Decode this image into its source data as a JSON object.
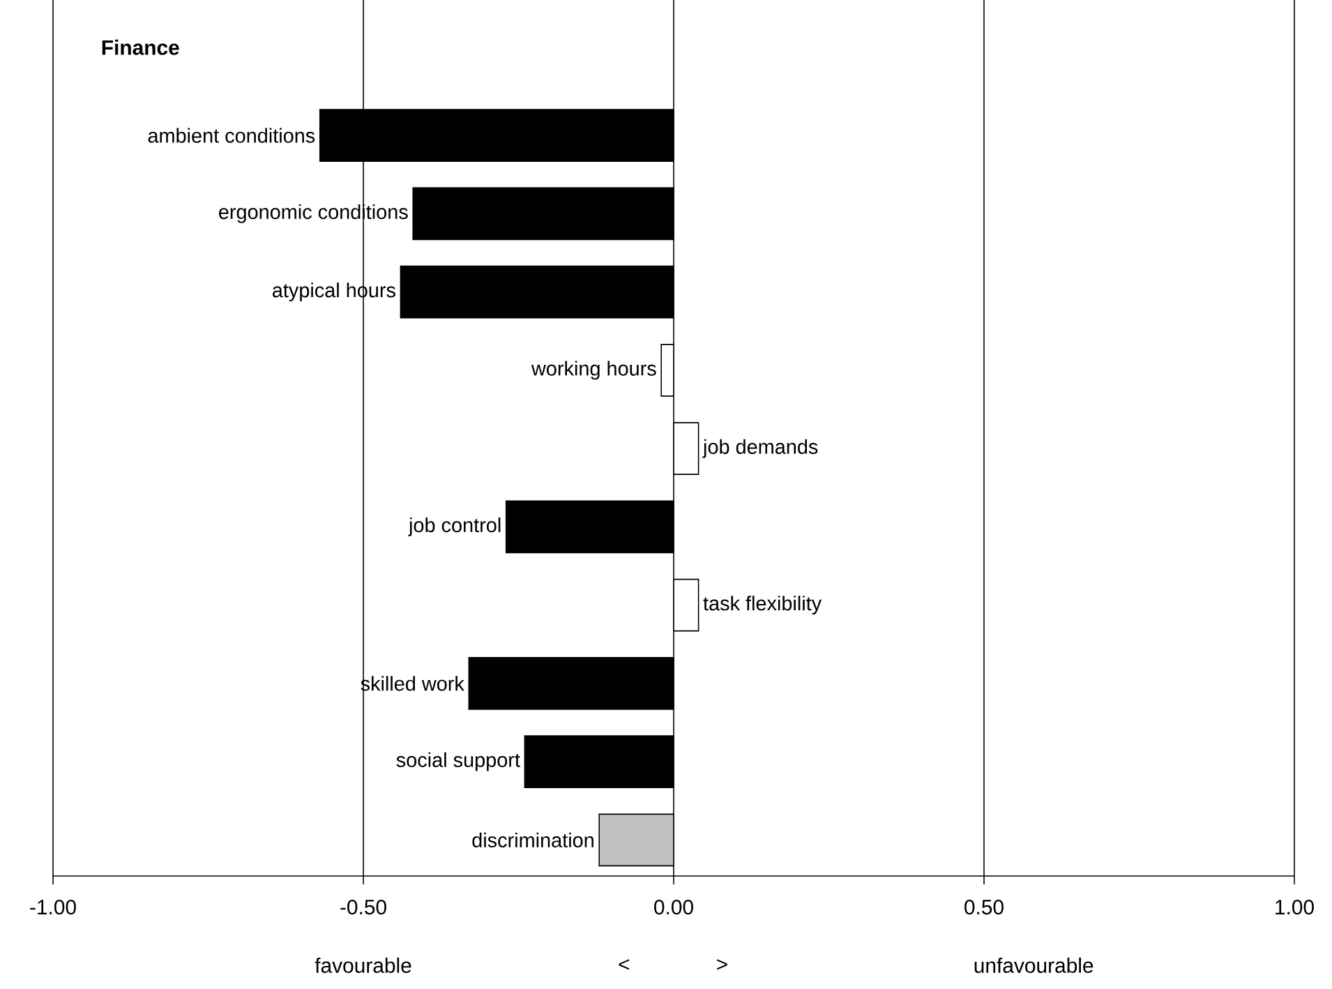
{
  "chart_data": {
    "type": "bar",
    "orientation": "horizontal",
    "title": "Finance",
    "categories": [
      "ambient conditions",
      "ergonomic conditions",
      "atypical hours",
      "working hours",
      "job demands",
      "job control",
      "task flexibility",
      "skilled work",
      "social support",
      "discrimination"
    ],
    "values": [
      -0.57,
      -0.42,
      -0.44,
      -0.02,
      0.04,
      -0.27,
      0.04,
      -0.33,
      -0.24,
      -0.12
    ],
    "colors": [
      "#000000",
      "#000000",
      "#000000",
      "#ffffff",
      "#ffffff",
      "#000000",
      "#ffffff",
      "#000000",
      "#000000",
      "#c0c0c0"
    ],
    "xlim": [
      -1,
      1
    ],
    "xticks": [
      {
        "value": -1,
        "label": "-1.00"
      },
      {
        "value": -0.5,
        "label": "-0.50"
      },
      {
        "value": 0,
        "label": "0.00"
      },
      {
        "value": 0.5,
        "label": "0.50"
      },
      {
        "value": 1,
        "label": "1.00"
      }
    ],
    "grid": "x",
    "annotations": [
      "favourable",
      "<",
      ">",
      "unfavourable"
    ]
  }
}
